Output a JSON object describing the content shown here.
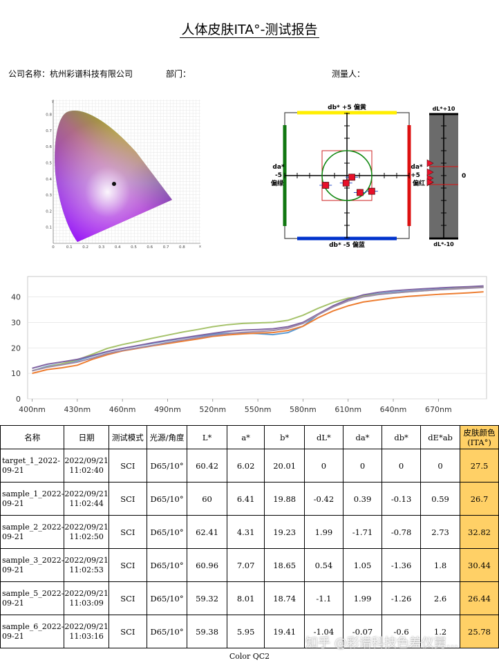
{
  "report": {
    "title": "人体皮肤ITA°-测试报告",
    "company_label": "公司名称：杭州彩谱科技有限公司",
    "department_label": "部门：",
    "operator_label": "测量人：",
    "footer": "Color QC2",
    "watermark": "知乎 @彩谱科技色差仪舅..."
  },
  "cie_diagram": {
    "x_ticks": [
      "0",
      "0.1",
      "0.2",
      "0.3",
      "0.4",
      "0.5",
      "0.6",
      "0.7",
      "0.8"
    ],
    "y_ticks": [
      "0.1",
      "0.2",
      "0.3",
      "0.4",
      "0.5",
      "0.6",
      "0.7",
      "0.8"
    ],
    "x_axis_label": "x",
    "y_axis_label": "y"
  },
  "dlab_plot": {
    "top_label": "db* +5  偏黄",
    "bottom_label": "db* -5  偏蓝",
    "left_label_1": "da*",
    "left_label_2": "-5",
    "left_label_3": "偏绿",
    "right_label_1": "da*",
    "right_label_2": "+5",
    "right_label_3": "偏红",
    "dl_top": "dL*+10",
    "dl_bottom": "dL*-10",
    "dl_zero": "0",
    "points": [
      {
        "name": "sample_1",
        "da": 0.39,
        "db": -0.13
      },
      {
        "name": "sample_2",
        "da": -1.71,
        "db": -0.78
      },
      {
        "name": "sample_3",
        "da": 1.05,
        "db": -1.36
      },
      {
        "name": "sample_5",
        "da": 1.99,
        "db": -1.26
      },
      {
        "name": "sample_6",
        "da": -0.07,
        "db": -0.6
      }
    ],
    "dl_values": [
      -0.42,
      1.99,
      0.54,
      -1.1,
      -1.04
    ],
    "colors": {
      "yellow": "#ffee00",
      "blue": "#0033cc",
      "green": "#117711",
      "red": "#dd1111",
      "marker": "#e8102a"
    }
  },
  "chart_data": {
    "type": "line",
    "x_tick_labels": [
      "400nm",
      "430nm",
      "460nm",
      "490nm",
      "520nm",
      "550nm",
      "580nm",
      "610nm",
      "640nm",
      "670nm"
    ],
    "x": [
      400,
      410,
      420,
      430,
      440,
      450,
      460,
      470,
      480,
      490,
      500,
      510,
      520,
      530,
      540,
      550,
      560,
      570,
      580,
      590,
      600,
      610,
      620,
      630,
      640,
      650,
      660,
      670,
      680,
      690,
      700
    ],
    "xlim": [
      397,
      702
    ],
    "ylim": [
      0,
      48
    ],
    "y_ticks": [
      0,
      10,
      20,
      30,
      40
    ],
    "grid": true,
    "series": [
      {
        "color": "#5b9bd5",
        "values": [
          11,
          12.8,
          13.8,
          15,
          16.8,
          18.5,
          19.8,
          20.8,
          21.8,
          22.8,
          23.8,
          24.6,
          25.3,
          25.8,
          25.8,
          25.6,
          25.2,
          26,
          28.5,
          33,
          36.5,
          39,
          40.5,
          41.2,
          41.8,
          42.2,
          42.6,
          43,
          43.3,
          43.6,
          44
        ]
      },
      {
        "color": "#ed7d31",
        "values": [
          10,
          11.5,
          12.2,
          13.2,
          15.5,
          17.3,
          18.8,
          19.8,
          20.8,
          21.7,
          22.6,
          23.5,
          24.5,
          25.1,
          25.5,
          25.8,
          26,
          26.8,
          28.5,
          31.8,
          34.5,
          36.5,
          38,
          38.8,
          39.6,
          40.2,
          40.6,
          41,
          41.3,
          41.6,
          42
        ]
      },
      {
        "color": "#a5c26a",
        "values": [
          11,
          12.5,
          13.8,
          15.3,
          17.5,
          19.8,
          21.3,
          22.5,
          23.8,
          25,
          26.2,
          27.2,
          28.3,
          29.1,
          29.6,
          29.8,
          30,
          30.8,
          32.8,
          35.5,
          37.8,
          39.5,
          40.3,
          41,
          41.5,
          42,
          42.4,
          42.8,
          43.2,
          43.6,
          43.8
        ]
      },
      {
        "color": "#8064a2",
        "values": [
          12,
          13.6,
          14.5,
          15.5,
          17,
          18.6,
          19.8,
          20.9,
          22,
          23,
          23.9,
          24.8,
          25.7,
          26.5,
          27,
          27.2,
          27.5,
          28.3,
          30,
          33.3,
          36.5,
          39,
          40.8,
          41.8,
          42.4,
          42.8,
          43.2,
          43.5,
          43.8,
          44,
          44.3
        ]
      },
      {
        "color": "#9e8aa8",
        "values": [
          11,
          12.4,
          13.4,
          14.4,
          16,
          17.8,
          19,
          20,
          21,
          22.1,
          23.1,
          24,
          24.9,
          25.6,
          26.1,
          26.4,
          26.8,
          27.7,
          29.6,
          33,
          36,
          38.4,
          40,
          40.9,
          41.5,
          42,
          42.4,
          42.8,
          43.1,
          43.4,
          43.7
        ]
      }
    ]
  },
  "table": {
    "headers": [
      "名称",
      "日期",
      "测试模式",
      "光源/角度",
      "L*",
      "a*",
      "b*",
      "dL*",
      "da*",
      "db*",
      "dE*ab",
      "皮肤颜色(ITA°)"
    ],
    "rows": [
      {
        "name": "target_1_2022-09-21",
        "date": "2022/09/21 11:02:40",
        "mode": "SCI",
        "light": "D65/10°",
        "L": "60.42",
        "a": "6.02",
        "b": "20.01",
        "dL": "0",
        "da": "0",
        "db": "0",
        "dE": "0",
        "ita": "27.5"
      },
      {
        "name": "sample_1_2022-09-21",
        "date": "2022/09/21 11:02:44",
        "mode": "SCI",
        "light": "D65/10°",
        "L": "60",
        "a": "6.41",
        "b": "19.88",
        "dL": "-0.42",
        "da": "0.39",
        "db": "-0.13",
        "dE": "0.59",
        "ita": "26.7"
      },
      {
        "name": "sample_2_2022-09-21",
        "date": "2022/09/21 11:02:50",
        "mode": "SCI",
        "light": "D65/10°",
        "L": "62.41",
        "a": "4.31",
        "b": "19.23",
        "dL": "1.99",
        "da": "-1.71",
        "db": "-0.78",
        "dE": "2.73",
        "ita": "32.82"
      },
      {
        "name": "sample_3_2022-09-21",
        "date": "2022/09/21 11:02:53",
        "mode": "SCI",
        "light": "D65/10°",
        "L": "60.96",
        "a": "7.07",
        "b": "18.65",
        "dL": "0.54",
        "da": "1.05",
        "db": "-1.36",
        "dE": "1.8",
        "ita": "30.44"
      },
      {
        "name": "sample_5_2022-09-21",
        "date": "2022/09/21 11:03:09",
        "mode": "SCI",
        "light": "D65/10°",
        "L": "59.32",
        "a": "8.01",
        "b": "18.74",
        "dL": "-1.1",
        "da": "1.99",
        "db": "-1.26",
        "dE": "2.6",
        "ita": "26.44"
      },
      {
        "name": "sample_6_2022-09-21",
        "date": "2022/09/21 11:03:16",
        "mode": "SCI",
        "light": "D65/10°",
        "L": "59.38",
        "a": "5.95",
        "b": "19.41",
        "dL": "-1.04",
        "da": "-0.07",
        "db": "-0.6",
        "dE": "1.2",
        "ita": "25.78"
      }
    ]
  }
}
